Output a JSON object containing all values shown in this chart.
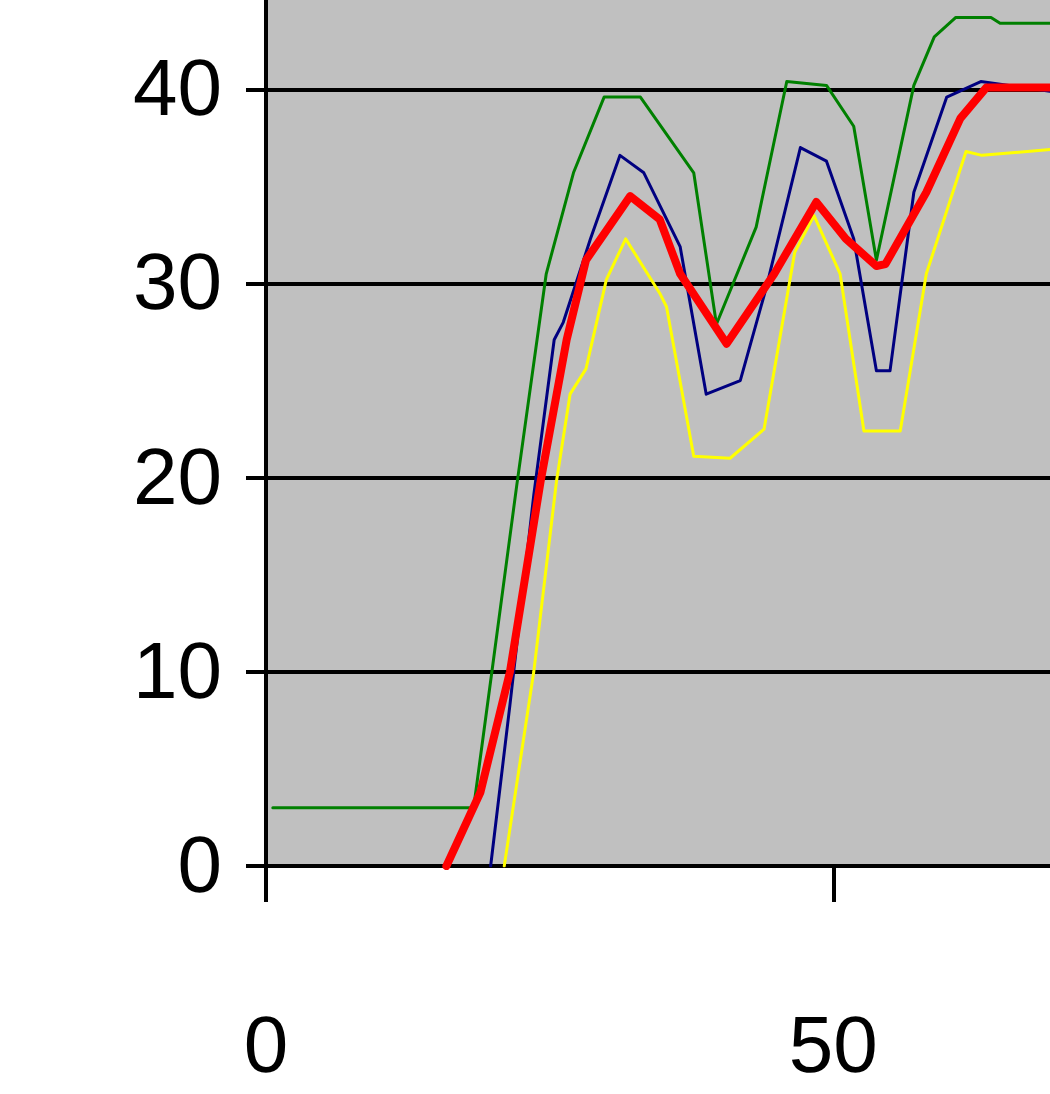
{
  "chart_data": {
    "type": "line",
    "xlim": [
      0,
      69.1
    ],
    "ylim": [
      0,
      44.6
    ],
    "xticks": [
      0,
      50
    ],
    "yticks": [
      0,
      10,
      20,
      30,
      40
    ],
    "grid": "y",
    "marker": "none",
    "line_style": "solid",
    "series": [
      {
        "color": "#008000",
        "x": [
          0.6,
          18.3,
          20.0,
          22.1,
          24.7,
          27.1,
          29.8,
          33.0,
          37.7,
          39.7,
          43.2,
          45.9,
          49.4,
          51.8,
          53.8,
          57.1,
          58.9,
          60.8,
          63.9,
          64.7,
          69.1
        ],
        "values": [
          3.0,
          3.0,
          10.4,
          19.6,
          30.5,
          35.7,
          39.6,
          39.6,
          35.7,
          27.9,
          32.9,
          40.4,
          40.2,
          38.1,
          31.2,
          40.2,
          42.7,
          43.7,
          43.7,
          43.4,
          43.4
        ]
      },
      {
        "color": "#000080",
        "x": [
          19.8,
          21.5,
          23.6,
          25.4,
          26.2,
          28.6,
          31.2,
          33.3,
          36.5,
          38.8,
          41.8,
          44.1,
          47.1,
          49.4,
          51.8,
          53.8,
          55.0,
          57.1,
          60.0,
          63.0,
          69.1
        ],
        "values": [
          0,
          8.3,
          19.1,
          27.1,
          28.0,
          32.3,
          36.6,
          35.7,
          31.9,
          24.3,
          25.0,
          29.8,
          37.0,
          36.3,
          32.3,
          25.5,
          25.5,
          34.7,
          39.6,
          40.4,
          39.9
        ]
      },
      {
        "color": "#ffff00",
        "x": [
          21.0,
          23.6,
          25.6,
          26.8,
          28.2,
          30.0,
          31.7,
          34.7,
          35.3,
          37.7,
          40.9,
          43.9,
          46.6,
          48.3,
          50.6,
          52.7,
          55.9,
          58.2,
          61.7,
          63.1,
          69.1
        ],
        "values": [
          0,
          10.0,
          19.8,
          24.3,
          25.6,
          30.2,
          32.3,
          29.5,
          28.8,
          21.1,
          21.0,
          22.5,
          31.6,
          33.5,
          30.5,
          22.4,
          22.4,
          30.5,
          36.8,
          36.6,
          36.9
        ]
      },
      {
        "color": "#ff0000",
        "x": [
          15.9,
          18.9,
          21.5,
          24.2,
          26.5,
          28.2,
          32.1,
          34.7,
          36.5,
          40.6,
          44.8,
          48.5,
          51.1,
          53.8,
          54.6,
          58.2,
          61.2,
          63.5,
          69.1
        ],
        "values": [
          0,
          3.8,
          10.0,
          19.8,
          27.1,
          31.2,
          34.5,
          33.3,
          30.5,
          26.9,
          30.5,
          34.2,
          32.3,
          30.9,
          31.0,
          34.7,
          38.5,
          40.1,
          40.1
        ]
      }
    ]
  }
}
